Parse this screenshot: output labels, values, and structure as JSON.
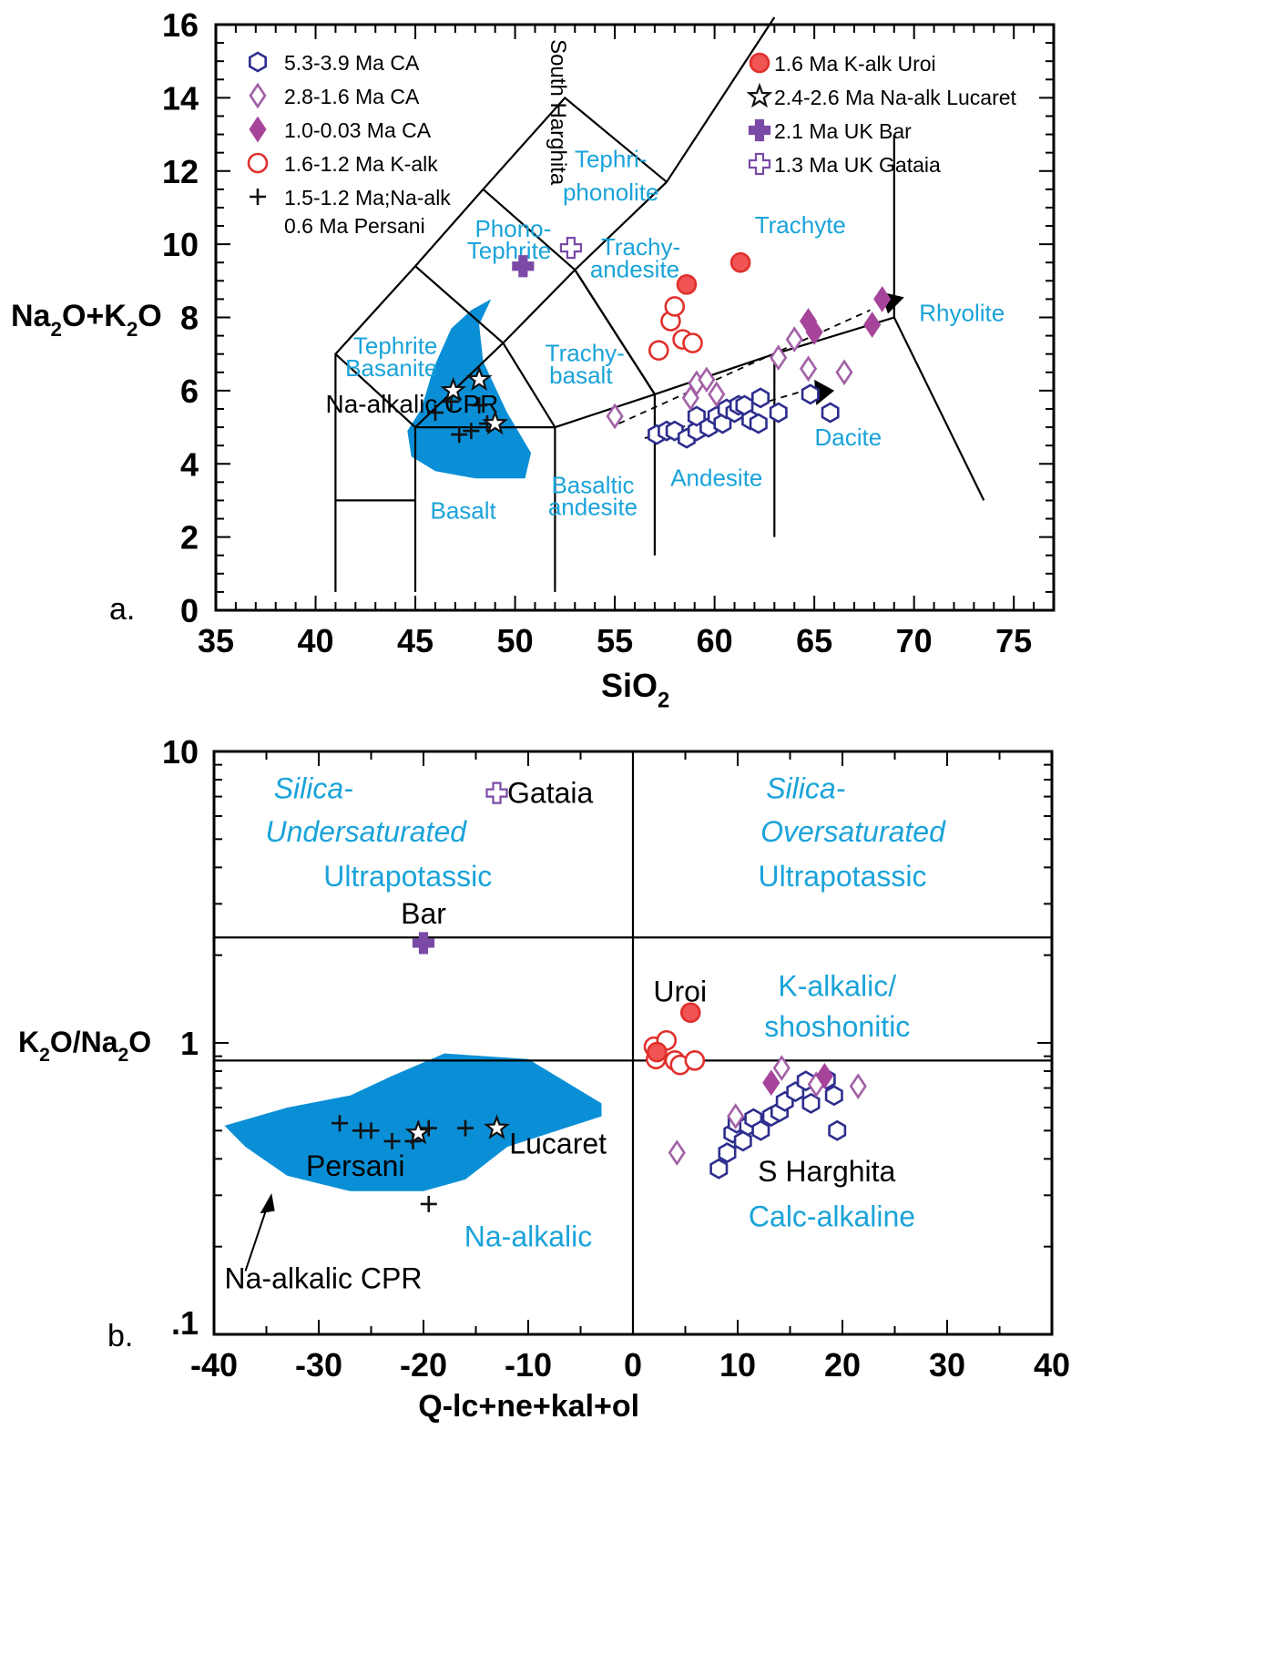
{
  "colors": {
    "ca_old": "#2e2e8e",
    "ca_mid": "#a260a6",
    "ca_young": "#a6449a",
    "kalk": "#e0302c",
    "kalk_fill": "#f05454",
    "naalk": "#111111",
    "uk": "#7a4aa6",
    "field_text": "#1aa3d9",
    "blob": "#0a8fd6",
    "axis": "#000000"
  },
  "panel_a": {
    "panel_label": "a.",
    "xlabel_main": "SiO",
    "xlabel_sub": "2",
    "ylabel_parts": [
      "Na",
      "2",
      "O+K",
      "2",
      "O"
    ],
    "vertical_label": "South Harghita",
    "cpr_label": "Na-alkalic CPR",
    "legend_left": [
      {
        "label": "5.3-3.9 Ma CA",
        "marker": "hexagon-open",
        "color_key": "ca_old"
      },
      {
        "label": "2.8-1.6 Ma CA",
        "marker": "diamond-open",
        "color_key": "ca_mid"
      },
      {
        "label": "1.0-0.03 Ma CA",
        "marker": "diamond-filled",
        "color_key": "ca_young"
      },
      {
        "label": "1.6-1.2 Ma K-alk",
        "marker": "circle-open",
        "color_key": "kalk"
      },
      {
        "label": "1.5-1.2 Ma;Na-alk",
        "marker": "plus",
        "color_key": "naalk"
      },
      {
        "label": "0.6 Ma Persani",
        "marker": "none",
        "color_key": "naalk"
      }
    ],
    "legend_right": [
      {
        "label": "1.6 Ma K-alk Uroi",
        "marker": "circle-filled",
        "color_key": "kalk"
      },
      {
        "label": "2.4-2.6 Ma Na-alk Lucaret",
        "marker": "star-open",
        "color_key": "naalk"
      },
      {
        "label": "2.1 Ma UK Bar",
        "marker": "cross-filled",
        "color_key": "uk"
      },
      {
        "label": "1.3 Ma UK Gataia",
        "marker": "cross-open",
        "color_key": "uk"
      }
    ],
    "fields": {
      "tephri_phonolite": [
        "Tephri-",
        "phonolite"
      ],
      "trachyte": "Trachyte",
      "phono_tephrite": [
        "Phono-",
        "Tephrite"
      ],
      "trachy_andesite": [
        "Trachy-",
        "andesite"
      ],
      "rhyolite": "Rhyolite",
      "tephrite_basanite": [
        "Tephrite",
        "Basanite"
      ],
      "trachy_basalt": [
        "Trachy-",
        "basalt"
      ],
      "dacite": "Dacite",
      "andesite": "Andesite",
      "basaltic_andesite": [
        "Basaltic",
        "andesite"
      ],
      "basalt": "Basalt"
    }
  },
  "panel_b": {
    "panel_label": "b.",
    "xlabel": "Q-lc+ne+kal+ol",
    "ylabel_parts": [
      "K",
      "2",
      "O/Na",
      "2",
      "O"
    ],
    "field_labels": {
      "undersat": [
        "Silica-",
        "Undersaturated",
        "Ultrapotassic"
      ],
      "oversat": [
        "Silica-",
        "Oversaturated",
        "Ultrapotassic"
      ],
      "kalkalic": [
        "K-alkalic/",
        "shoshonitic"
      ],
      "naalkalic": "Na-alkalic",
      "calcalkaline": "Calc-alkaline"
    },
    "point_labels": {
      "gataia": "Gataia",
      "bar": "Bar",
      "uroi": "Uroi",
      "lucaret": "Lucaret",
      "persani": "Persani",
      "sharghita": "S Harghita",
      "cpr": "Na-alkalic CPR"
    }
  },
  "chart_data": [
    {
      "type": "scatter",
      "panel": "a",
      "xlabel": "SiO2",
      "ylabel": "Na2O+K2O",
      "xlim": [
        35,
        77
      ],
      "ylim": [
        0,
        16
      ],
      "xticks": [
        35,
        40,
        45,
        50,
        55,
        60,
        65,
        70,
        75
      ],
      "yticks": [
        0,
        2,
        4,
        6,
        8,
        10,
        12,
        14,
        16
      ],
      "series": [
        {
          "name": "5.3-3.9 Ma CA",
          "marker": "hexagon-open",
          "points": [
            [
              57.1,
              4.8
            ],
            [
              57.6,
              4.9
            ],
            [
              58,
              4.9
            ],
            [
              58.6,
              4.7
            ],
            [
              59.1,
              4.9
            ],
            [
              59.1,
              5.3
            ],
            [
              59.7,
              5.0
            ],
            [
              60.1,
              5.3
            ],
            [
              60.4,
              5.1
            ],
            [
              60.6,
              5.5
            ],
            [
              61,
              5.4
            ],
            [
              61.2,
              5.6
            ],
            [
              61.5,
              5.6
            ],
            [
              61.8,
              5.2
            ],
            [
              62.2,
              5.1
            ],
            [
              62.3,
              5.8
            ],
            [
              63.2,
              5.4
            ],
            [
              64.8,
              5.9
            ],
            [
              65.8,
              5.4
            ]
          ]
        },
        {
          "name": "2.8-1.6 Ma CA",
          "marker": "diamond-open",
          "points": [
            [
              55,
              5.3
            ],
            [
              58.8,
              5.8
            ],
            [
              59.1,
              6.2
            ],
            [
              59.6,
              6.3
            ],
            [
              60.1,
              5.9
            ],
            [
              63.2,
              6.9
            ],
            [
              64,
              7.4
            ],
            [
              64.7,
              6.6
            ],
            [
              66.5,
              6.5
            ]
          ]
        },
        {
          "name": "1.0-0.03 Ma CA",
          "marker": "diamond-filled",
          "points": [
            [
              64.7,
              7.9
            ],
            [
              65,
              7.6
            ],
            [
              67.9,
              7.8
            ],
            [
              68.4,
              8.5
            ]
          ]
        },
        {
          "name": "1.6-1.2 Ma K-alk",
          "marker": "circle-open",
          "points": [
            [
              57.2,
              7.1
            ],
            [
              57.8,
              7.9
            ],
            [
              58,
              8.3
            ],
            [
              58.4,
              7.4
            ],
            [
              58.9,
              7.3
            ]
          ]
        },
        {
          "name": "1.5-1.2 Ma;Na-alk",
          "marker": "plus",
          "points": [
            [
              46,
              5.4
            ],
            [
              46.8,
              5.7
            ],
            [
              47.2,
              4.8
            ],
            [
              47.8,
              4.9
            ],
            [
              48.2,
              5.6
            ],
            [
              48.6,
              5.1
            ]
          ]
        },
        {
          "name": "1.6 Ma K-alk Uroi",
          "marker": "circle-filled",
          "points": [
            [
              58.6,
              8.9
            ],
            [
              61.3,
              9.5
            ]
          ]
        },
        {
          "name": "2.4-2.6 Ma Na-alk Lucaret",
          "marker": "star-open",
          "points": [
            [
              46.9,
              6
            ],
            [
              48.2,
              6.3
            ],
            [
              49,
              5.1
            ]
          ]
        },
        {
          "name": "2.1 Ma UK Bar",
          "marker": "cross-filled",
          "points": [
            [
              50.4,
              9.4
            ]
          ]
        },
        {
          "name": "1.3 Ma UK Gataia",
          "marker": "cross-open",
          "points": [
            [
              52.8,
              9.9
            ]
          ]
        }
      ]
    },
    {
      "type": "scatter",
      "panel": "b",
      "xlabel": "Q-lc+ne+kal+ol",
      "ylabel": "K2O/Na2O",
      "xlim": [
        -40,
        40
      ],
      "ylim": [
        0.1,
        10
      ],
      "yscale": "log",
      "xticks": [
        -40,
        -30,
        -20,
        -10,
        0,
        10,
        20,
        30,
        40
      ],
      "yticks": [
        "10",
        "1",
        ".1"
      ],
      "series": [
        {
          "name": "5.3-3.9 Ma CA",
          "marker": "hexagon-open",
          "points": [
            [
              8.2,
              0.37
            ],
            [
              9,
              0.42
            ],
            [
              9.5,
              0.49
            ],
            [
              9.9,
              0.53
            ],
            [
              10.5,
              0.46
            ],
            [
              11,
              0.52
            ],
            [
              11.5,
              0.55
            ],
            [
              12.2,
              0.5
            ],
            [
              13.2,
              0.56
            ],
            [
              14,
              0.58
            ],
            [
              14.5,
              0.63
            ],
            [
              15.5,
              0.68
            ],
            [
              16.5,
              0.74
            ],
            [
              17,
              0.62
            ],
            [
              18.5,
              0.75
            ],
            [
              19.2,
              0.66
            ],
            [
              19.5,
              0.5
            ]
          ]
        },
        {
          "name": "2.8-1.6 Ma CA",
          "marker": "diamond-open",
          "points": [
            [
              4.2,
              0.42
            ],
            [
              9.8,
              0.56
            ],
            [
              14.2,
              0.82
            ],
            [
              17.5,
              0.72
            ],
            [
              21.5,
              0.71
            ]
          ]
        },
        {
          "name": "1.0-0.03 Ma CA",
          "marker": "diamond-filled",
          "points": [
            [
              13.2,
              0.73
            ],
            [
              18.3,
              0.77
            ]
          ]
        },
        {
          "name": "1.6-1.2 Ma K-alk",
          "marker": "circle-open",
          "points": [
            [
              2,
              0.97
            ],
            [
              2.2,
              0.88
            ],
            [
              3.2,
              1.02
            ],
            [
              4,
              0.87
            ],
            [
              4.5,
              0.84
            ],
            [
              5.9,
              0.87
            ]
          ]
        },
        {
          "name": "1.5-1.2 Ma;Na-alk",
          "marker": "plus",
          "points": [
            [
              -28,
              0.53
            ],
            [
              -26,
              0.5
            ],
            [
              -25,
              0.5
            ],
            [
              -23,
              0.46
            ],
            [
              -21,
              0.46
            ],
            [
              -19.5,
              0.51
            ],
            [
              -16,
              0.51
            ],
            [
              -19.5,
              0.28
            ]
          ]
        },
        {
          "name": "1.6 Ma K-alk Uroi",
          "marker": "circle-filled",
          "points": [
            [
              2.3,
              0.93
            ],
            [
              5.5,
              1.27
            ]
          ]
        },
        {
          "name": "2.4-2.6 Ma Na-alk Lucaret",
          "marker": "star-open",
          "points": [
            [
              -20.5,
              0.49
            ],
            [
              -13,
              0.51
            ]
          ]
        },
        {
          "name": "2.1 Ma UK Bar",
          "marker": "cross-filled",
          "points": [
            [
              -20,
              2.2
            ]
          ]
        },
        {
          "name": "1.3 Ma UK Gataia",
          "marker": "cross-open",
          "points": [
            [
              -13,
              7.2
            ]
          ]
        }
      ]
    }
  ]
}
